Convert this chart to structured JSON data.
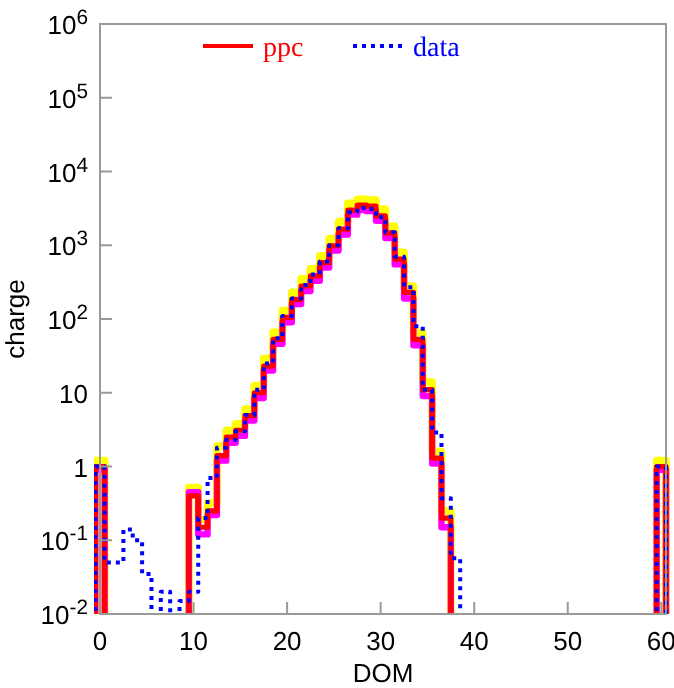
{
  "chart_data": {
    "type": "step",
    "xlabel": "DOM",
    "ylabel": "charge",
    "log": "y",
    "legend": "top",
    "grid": false,
    "x": [
      0,
      1,
      2,
      3,
      4,
      5,
      6,
      7,
      8,
      9,
      10,
      11,
      12,
      13,
      14,
      15,
      16,
      17,
      18,
      19,
      20,
      21,
      22,
      23,
      24,
      25,
      26,
      27,
      28,
      29,
      30,
      31,
      32,
      33,
      34,
      35,
      36,
      37,
      38,
      39,
      40,
      41,
      42,
      43,
      44,
      45,
      46,
      47,
      48,
      49,
      50,
      51,
      52,
      53,
      54,
      55,
      56,
      57,
      58,
      59,
      60
    ],
    "xlim": [
      0,
      60.5
    ],
    "xticks": [
      0,
      10,
      20,
      30,
      40,
      50,
      60
    ],
    "ylim": [
      0.01,
      1000000
    ],
    "yticks": [
      {
        "value": 0.01,
        "label": "10$^{-2}$"
      },
      {
        "value": 0.1,
        "label": "10$^{-1}$"
      },
      1,
      10,
      {
        "value": 100,
        "label": "10$^{2}$"
      },
      {
        "value": 1000,
        "label": "10$^{3}$"
      },
      {
        "value": 10000,
        "label": "10$^{4}$"
      },
      {
        "value": 100000,
        "label": "10$^{5}$"
      },
      {
        "value": 1000000,
        "label": "10$^{6}$"
      }
    ],
    "series": [
      {
        "color": "#ffff00",
        "line_style": "solid",
        "values": [
          1.2,
          null,
          null,
          null,
          null,
          null,
          null,
          null,
          null,
          null,
          0.52,
          0.19,
          0.32,
          1.9,
          3.1,
          3.8,
          6,
          12.5,
          29,
          66,
          130,
          230,
          350,
          480,
          720,
          1230,
          2100,
          3700,
          4200,
          4100,
          3100,
          1800,
          800,
          280,
          66,
          14,
          1.6,
          0.25,
          null,
          null,
          null,
          null,
          null,
          null,
          null,
          null,
          null,
          null,
          null,
          null,
          null,
          null,
          null,
          null,
          null,
          null,
          null,
          null,
          null,
          null,
          1.2
        ]
      },
      {
        "color": "#ff00ff",
        "line_style": "solid",
        "values": [
          0.9,
          null,
          null,
          null,
          null,
          null,
          null,
          null,
          null,
          null,
          0.45,
          0.12,
          0.22,
          1.2,
          2.1,
          2.6,
          4.2,
          8.5,
          20,
          46,
          90,
          160,
          240,
          330,
          500,
          850,
          1400,
          2600,
          3000,
          2900,
          2150,
          1250,
          550,
          190,
          44,
          9,
          1.1,
          0.15,
          null,
          null,
          null,
          null,
          null,
          null,
          null,
          null,
          null,
          null,
          null,
          null,
          null,
          null,
          null,
          null,
          null,
          null,
          null,
          null,
          null,
          null,
          0.9
        ]
      },
      {
        "name": "ppc",
        "color": "#ff0000",
        "line_style": "solid",
        "values": [
          1,
          null,
          null,
          null,
          null,
          null,
          null,
          null,
          null,
          null,
          0.4,
          0.15,
          0.25,
          1.4,
          2.5,
          3.1,
          4.9,
          10,
          23,
          53,
          105,
          185,
          280,
          385,
          580,
          985,
          1650,
          3000,
          3500,
          3400,
          2500,
          1470,
          650,
          230,
          53,
          11,
          1.3,
          0.2,
          null,
          null,
          null,
          null,
          null,
          null,
          null,
          null,
          null,
          null,
          null,
          null,
          null,
          null,
          null,
          null,
          null,
          null,
          null,
          null,
          null,
          null,
          1
        ]
      },
      {
        "name": "data",
        "color": "#0000ff",
        "line_style": "dotted",
        "values": [
          1,
          0.05,
          0.05,
          0.14,
          0.1,
          0.035,
          null,
          0.02,
          null,
          0.015,
          0.02,
          0.2,
          0.7,
          1.8,
          2.3,
          3,
          5,
          11,
          25,
          55,
          110,
          190,
          290,
          400,
          600,
          1000,
          1700,
          2800,
          3200,
          3100,
          2400,
          1500,
          700,
          270,
          80,
          11,
          2.9,
          0.37,
          0.057,
          null,
          null,
          null,
          null,
          null,
          null,
          null,
          null,
          null,
          null,
          null,
          null,
          null,
          null,
          null,
          null,
          null,
          null,
          null,
          null,
          null,
          1
        ]
      }
    ]
  }
}
